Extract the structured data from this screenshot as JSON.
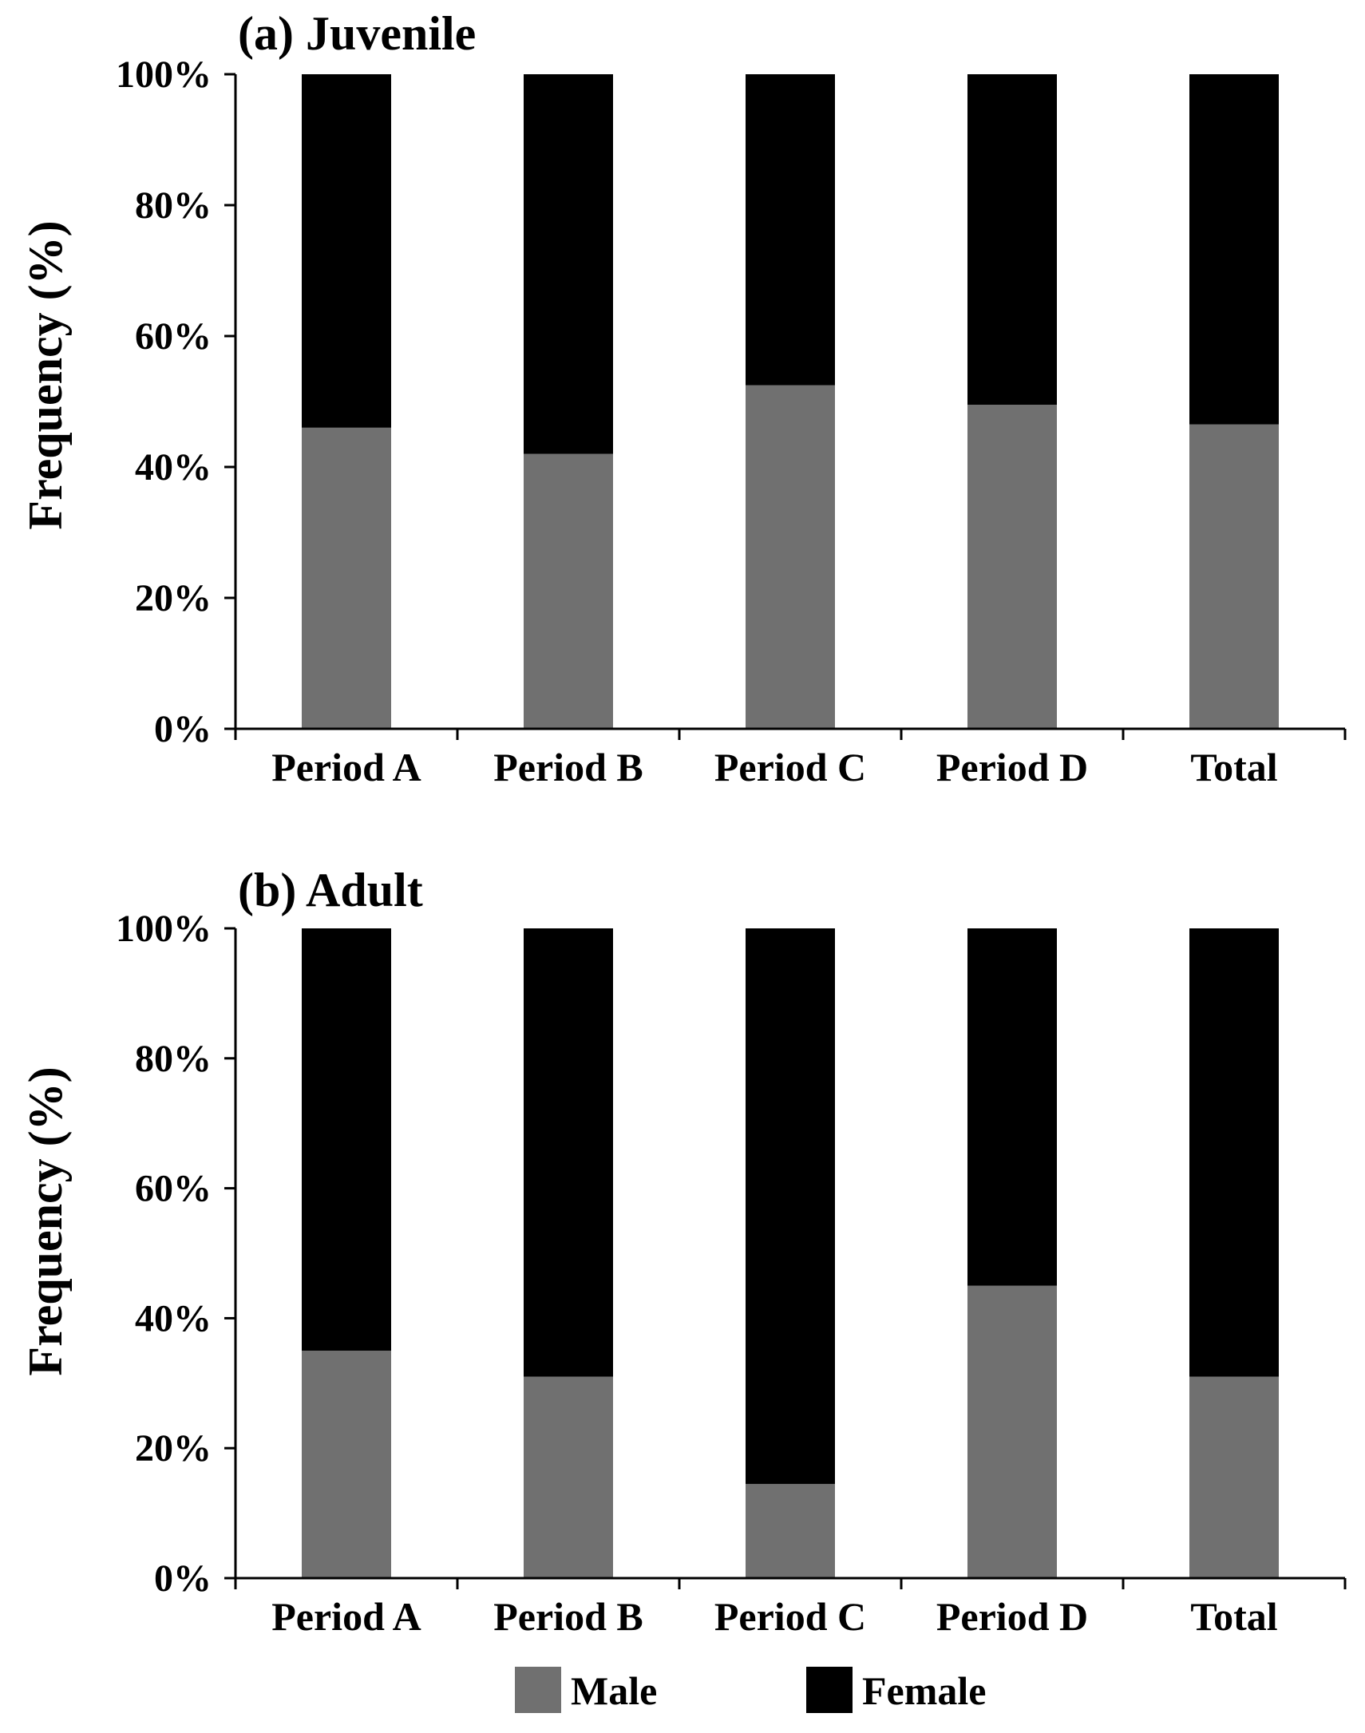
{
  "legend": [
    {
      "name": "Male",
      "color": "#707070"
    },
    {
      "name": "Female",
      "color": "#000000"
    }
  ],
  "chart_data": [
    {
      "type": "bar",
      "stacked": true,
      "percent": true,
      "title": "(a) Juvenile",
      "ylabel": "Frequency (%)",
      "xlabel": "",
      "categories": [
        "Period A",
        "Period B",
        "Period C",
        "Period D",
        "Total"
      ],
      "ylim": [
        0,
        100
      ],
      "yticks": [
        "0%",
        "20%",
        "40%",
        "60%",
        "80%",
        "100%"
      ],
      "series": [
        {
          "name": "Male",
          "color": "#707070",
          "values": [
            46,
            42,
            52.5,
            49.5,
            46.5
          ]
        },
        {
          "name": "Female",
          "color": "#000000",
          "values": [
            54,
            58,
            47.5,
            50.5,
            53.5
          ]
        }
      ],
      "grid": false,
      "legend_position": "bottom"
    },
    {
      "type": "bar",
      "stacked": true,
      "percent": true,
      "title": "(b) Adult",
      "ylabel": "Frequency (%)",
      "xlabel": "",
      "categories": [
        "Period A",
        "Period B",
        "Period C",
        "Period D",
        "Total"
      ],
      "ylim": [
        0,
        100
      ],
      "yticks": [
        "0%",
        "20%",
        "40%",
        "60%",
        "80%",
        "100%"
      ],
      "series": [
        {
          "name": "Male",
          "color": "#707070",
          "values": [
            35,
            31,
            14.5,
            45,
            31
          ]
        },
        {
          "name": "Female",
          "color": "#000000",
          "values": [
            65,
            69,
            85.5,
            55,
            69
          ]
        }
      ],
      "grid": false,
      "legend_position": "bottom"
    }
  ]
}
